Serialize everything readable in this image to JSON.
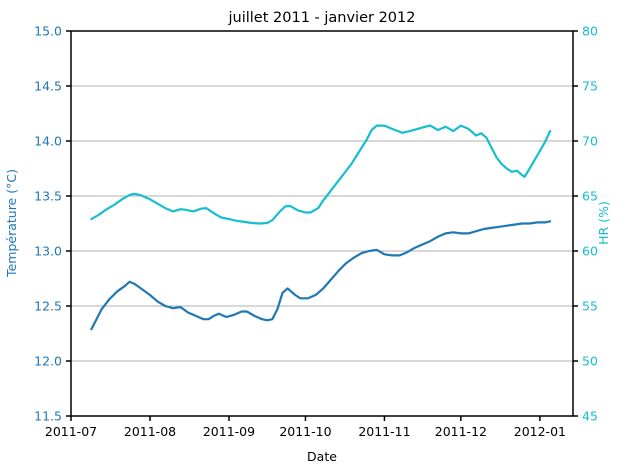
{
  "window": {
    "background": "#ffffff"
  },
  "chart_data": {
    "type": "line",
    "title": "juillet 2011 - janvier 2012",
    "xlabel": "Date",
    "ylabel_left": "Température (°C)",
    "ylabel_right": "HR (%)",
    "grid": "horizontal",
    "legend": "none",
    "xlim": [
      "2011-07-01",
      "2012-01-14"
    ],
    "ylim_left": [
      11.5,
      15.0
    ],
    "ylim_right": [
      45,
      80
    ],
    "x_ticks": [
      {
        "date": "2011-07-01",
        "label": "2011-07"
      },
      {
        "date": "2011-08-01",
        "label": "2011-08"
      },
      {
        "date": "2011-09-01",
        "label": "2011-09"
      },
      {
        "date": "2011-10-01",
        "label": "2011-10"
      },
      {
        "date": "2011-11-01",
        "label": "2011-11"
      },
      {
        "date": "2011-12-01",
        "label": "2011-12"
      },
      {
        "date": "2012-01-01",
        "label": "2012-01"
      }
    ],
    "y_ticks_left": [
      {
        "value": 15.0,
        "label": "15.0"
      },
      {
        "value": 14.5,
        "label": "14.5"
      },
      {
        "value": 14.0,
        "label": "14.0"
      },
      {
        "value": 13.5,
        "label": "13.5"
      },
      {
        "value": 13.0,
        "label": "13.0"
      },
      {
        "value": 12.5,
        "label": "12.5"
      },
      {
        "value": 12.0,
        "label": "12.0"
      },
      {
        "value": 11.5,
        "label": "11.5"
      }
    ],
    "y_ticks_right": [
      {
        "value": 80,
        "label": "80"
      },
      {
        "value": 75,
        "label": "75"
      },
      {
        "value": 70,
        "label": "70"
      },
      {
        "value": 65,
        "label": "65"
      },
      {
        "value": 60,
        "label": "60"
      },
      {
        "value": 55,
        "label": "55"
      },
      {
        "value": 50,
        "label": "50"
      },
      {
        "value": 45,
        "label": "45"
      }
    ],
    "colors": {
      "temperature": "#1f77b4",
      "humidity": "#17becf",
      "grid": "#b0b0b0",
      "axis": "#000000"
    },
    "series": [
      {
        "name": "Température (°C)",
        "axis": "left",
        "color": "#1f77b4",
        "points": [
          [
            "2011-07-09",
            12.29
          ],
          [
            "2011-07-11",
            12.38
          ],
          [
            "2011-07-13",
            12.47
          ],
          [
            "2011-07-16",
            12.56
          ],
          [
            "2011-07-19",
            12.63
          ],
          [
            "2011-07-22",
            12.68
          ],
          [
            "2011-07-24",
            12.72
          ],
          [
            "2011-07-26",
            12.7
          ],
          [
            "2011-07-29",
            12.65
          ],
          [
            "2011-08-01",
            12.6
          ],
          [
            "2011-08-04",
            12.54
          ],
          [
            "2011-08-07",
            12.5
          ],
          [
            "2011-08-10",
            12.48
          ],
          [
            "2011-08-13",
            12.49
          ],
          [
            "2011-08-16",
            12.44
          ],
          [
            "2011-08-19",
            12.41
          ],
          [
            "2011-08-22",
            12.38
          ],
          [
            "2011-08-24",
            12.38
          ],
          [
            "2011-08-26",
            12.41
          ],
          [
            "2011-08-28",
            12.43
          ],
          [
            "2011-08-31",
            12.4
          ],
          [
            "2011-09-03",
            12.42
          ],
          [
            "2011-09-06",
            12.45
          ],
          [
            "2011-09-08",
            12.45
          ],
          [
            "2011-09-11",
            12.41
          ],
          [
            "2011-09-14",
            12.38
          ],
          [
            "2011-09-16",
            12.37
          ],
          [
            "2011-09-18",
            12.38
          ],
          [
            "2011-09-20",
            12.47
          ],
          [
            "2011-09-22",
            12.62
          ],
          [
            "2011-09-24",
            12.66
          ],
          [
            "2011-09-27",
            12.6
          ],
          [
            "2011-09-29",
            12.57
          ],
          [
            "2011-10-02",
            12.57
          ],
          [
            "2011-10-05",
            12.6
          ],
          [
            "2011-10-08",
            12.66
          ],
          [
            "2011-10-11",
            12.74
          ],
          [
            "2011-10-14",
            12.82
          ],
          [
            "2011-10-17",
            12.89
          ],
          [
            "2011-10-20",
            12.94
          ],
          [
            "2011-10-23",
            12.98
          ],
          [
            "2011-10-26",
            13.0
          ],
          [
            "2011-10-29",
            13.01
          ],
          [
            "2011-11-01",
            12.97
          ],
          [
            "2011-11-04",
            12.96
          ],
          [
            "2011-11-07",
            12.96
          ],
          [
            "2011-11-10",
            12.99
          ],
          [
            "2011-11-13",
            13.03
          ],
          [
            "2011-11-16",
            13.06
          ],
          [
            "2011-11-19",
            13.09
          ],
          [
            "2011-11-22",
            13.13
          ],
          [
            "2011-11-25",
            13.16
          ],
          [
            "2011-11-28",
            13.17
          ],
          [
            "2011-12-01",
            13.16
          ],
          [
            "2011-12-04",
            13.16
          ],
          [
            "2011-12-07",
            13.18
          ],
          [
            "2011-12-10",
            13.2
          ],
          [
            "2011-12-13",
            13.21
          ],
          [
            "2011-12-16",
            13.22
          ],
          [
            "2011-12-19",
            13.23
          ],
          [
            "2011-12-22",
            13.24
          ],
          [
            "2011-12-25",
            13.25
          ],
          [
            "2011-12-28",
            13.25
          ],
          [
            "2011-12-31",
            13.26
          ],
          [
            "2012-01-03",
            13.26
          ],
          [
            "2012-01-05",
            13.27
          ]
        ]
      },
      {
        "name": "HR (%)",
        "axis": "right",
        "color": "#17becf",
        "points": [
          [
            "2011-07-09",
            62.9
          ],
          [
            "2011-07-12",
            63.3
          ],
          [
            "2011-07-15",
            63.8
          ],
          [
            "2011-07-18",
            64.2
          ],
          [
            "2011-07-21",
            64.7
          ],
          [
            "2011-07-24",
            65.1
          ],
          [
            "2011-07-26",
            65.2
          ],
          [
            "2011-07-28",
            65.1
          ],
          [
            "2011-08-01",
            64.7
          ],
          [
            "2011-08-04",
            64.3
          ],
          [
            "2011-08-07",
            63.9
          ],
          [
            "2011-08-10",
            63.6
          ],
          [
            "2011-08-13",
            63.8
          ],
          [
            "2011-08-15",
            63.75
          ],
          [
            "2011-08-18",
            63.6
          ],
          [
            "2011-08-21",
            63.85
          ],
          [
            "2011-08-23",
            63.9
          ],
          [
            "2011-08-25",
            63.6
          ],
          [
            "2011-08-27",
            63.3
          ],
          [
            "2011-08-29",
            63.05
          ],
          [
            "2011-09-01",
            62.9
          ],
          [
            "2011-09-04",
            62.75
          ],
          [
            "2011-09-07",
            62.65
          ],
          [
            "2011-09-10",
            62.55
          ],
          [
            "2011-09-13",
            62.5
          ],
          [
            "2011-09-16",
            62.55
          ],
          [
            "2011-09-18",
            62.8
          ],
          [
            "2011-09-21",
            63.6
          ],
          [
            "2011-09-23",
            64.05
          ],
          [
            "2011-09-25",
            64.1
          ],
          [
            "2011-09-28",
            63.7
          ],
          [
            "2011-10-01",
            63.5
          ],
          [
            "2011-10-03",
            63.5
          ],
          [
            "2011-10-06",
            63.9
          ],
          [
            "2011-10-08",
            64.6
          ],
          [
            "2011-10-10",
            65.2
          ],
          [
            "2011-10-13",
            66.1
          ],
          [
            "2011-10-16",
            67.0
          ],
          [
            "2011-10-19",
            67.9
          ],
          [
            "2011-10-22",
            69.0
          ],
          [
            "2011-10-25",
            70.1
          ],
          [
            "2011-10-27",
            71.0
          ],
          [
            "2011-10-29",
            71.4
          ],
          [
            "2011-11-01",
            71.4
          ],
          [
            "2011-11-04",
            71.1
          ],
          [
            "2011-11-08",
            70.75
          ],
          [
            "2011-11-11",
            70.9
          ],
          [
            "2011-11-14",
            71.1
          ],
          [
            "2011-11-17",
            71.3
          ],
          [
            "2011-11-19",
            71.4
          ],
          [
            "2011-11-22",
            71.0
          ],
          [
            "2011-11-25",
            71.3
          ],
          [
            "2011-11-28",
            70.9
          ],
          [
            "2011-12-01",
            71.4
          ],
          [
            "2011-12-04",
            71.1
          ],
          [
            "2011-12-07",
            70.5
          ],
          [
            "2011-12-09",
            70.7
          ],
          [
            "2011-12-11",
            70.3
          ],
          [
            "2011-12-13",
            69.4
          ],
          [
            "2011-12-15",
            68.5
          ],
          [
            "2011-12-17",
            67.9
          ],
          [
            "2011-12-19",
            67.5
          ],
          [
            "2011-12-21",
            67.2
          ],
          [
            "2011-12-23",
            67.3
          ],
          [
            "2011-12-25",
            66.9
          ],
          [
            "2011-12-26",
            66.75
          ],
          [
            "2011-12-28",
            67.5
          ],
          [
            "2011-12-30",
            68.3
          ],
          [
            "2012-01-01",
            69.1
          ],
          [
            "2012-01-03",
            69.9
          ],
          [
            "2012-01-05",
            70.9
          ]
        ]
      }
    ]
  }
}
